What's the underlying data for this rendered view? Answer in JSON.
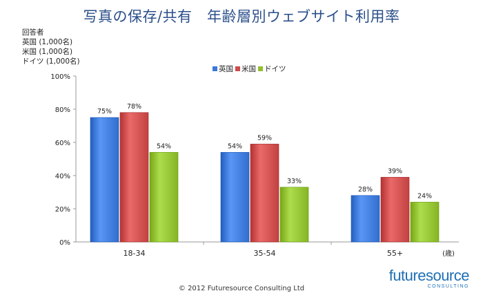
{
  "title": "写真の保存/共有　年齢層別ウェブサイト利用率",
  "respondents": {
    "heading": "回答者",
    "lines": [
      "英国 (1,000名)",
      "米国 (1,000名)",
      "ドイツ (1,000名)"
    ]
  },
  "chart_data": {
    "type": "bar",
    "title": "写真の保存/共有　年齢層別ウェブサイト利用率",
    "categories": [
      "18-34",
      "35-54",
      "55+"
    ],
    "xlabel": "(歳)",
    "ylabel": "",
    "ylim": [
      0,
      100
    ],
    "yticks": [
      "0%",
      "20%",
      "40%",
      "60%",
      "80%",
      "100%"
    ],
    "legend_position": "top-center",
    "series": [
      {
        "name": "英国",
        "color": "#3b78d8",
        "values": [
          75,
          54,
          28
        ],
        "labels": [
          "75%",
          "54%",
          "28%"
        ]
      },
      {
        "name": "米国",
        "color": "#cc4b4b",
        "values": [
          78,
          59,
          39
        ],
        "labels": [
          "78%",
          "59%",
          "39%"
        ]
      },
      {
        "name": "ドイツ",
        "color": "#8fbf2e",
        "values": [
          54,
          33,
          24
        ],
        "labels": [
          "54%",
          "33%",
          "24%"
        ]
      }
    ]
  },
  "footer": "© 2012 Futuresource Consulting Ltd",
  "logo": {
    "main": "futuresource",
    "sub": "CONSULTING"
  }
}
